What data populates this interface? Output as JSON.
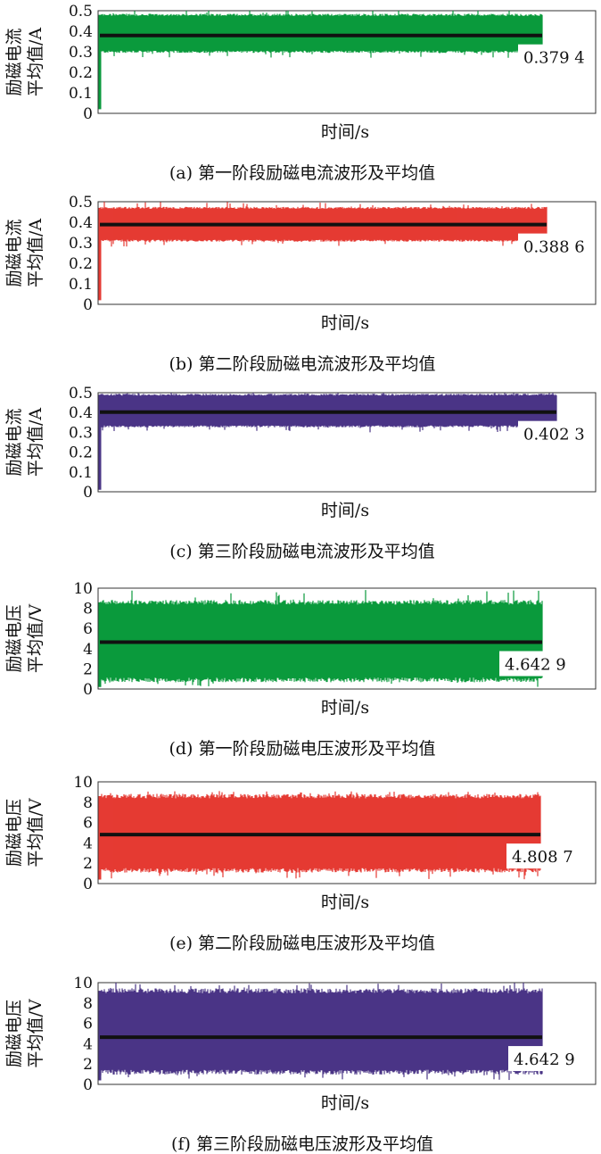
{
  "chart_data": [
    {
      "type": "line",
      "caption": "(a) 第一阶段励磁电流波形及平均值",
      "ylabel": [
        "励磁电流",
        "平均值/A"
      ],
      "xlabel": "时间/s",
      "yticks": [
        "0",
        "0.1",
        "0.2",
        "0.3",
        "0.4",
        "0.5"
      ],
      "ylim": [
        0,
        0.5
      ],
      "series": [
        {
          "name": "",
          "color": "#0a9a3c",
          "shape": "noise_band",
          "band": [
            0.3,
            0.48
          ],
          "extremes": [
            0.27,
            0.51
          ],
          "start_dip": 0.02
        }
      ],
      "mean": 0.3794,
      "annotation": "0.379 4"
    },
    {
      "type": "line",
      "caption": "(b) 第二阶段励磁电流波形及平均值",
      "ylabel": [
        "励磁电流",
        "平均值/A"
      ],
      "xlabel": "时间/s",
      "yticks": [
        "0",
        "0.1",
        "0.2",
        "0.3",
        "0.4",
        "0.5"
      ],
      "ylim": [
        0,
        0.5
      ],
      "series": [
        {
          "name": "",
          "color": "#e53a33",
          "shape": "noise_band",
          "band": [
            0.31,
            0.47
          ],
          "extremes": [
            0.28,
            0.5
          ],
          "start_dip": 0.02
        }
      ],
      "mean": 0.3886,
      "annotation": "0.388 6"
    },
    {
      "type": "line",
      "caption": "(c) 第三阶段励磁电流波形及平均值",
      "ylabel": [
        "励磁电流",
        "平均值/A"
      ],
      "xlabel": "时间/s",
      "yticks": [
        "0",
        "0.1",
        "0.2",
        "0.3",
        "0.4",
        "0.5"
      ],
      "ylim": [
        0,
        0.5
      ],
      "series": [
        {
          "name": "",
          "color": "#4a3586",
          "shape": "noise_band",
          "band": [
            0.33,
            0.49
          ],
          "extremes": [
            0.3,
            0.5
          ],
          "start_dip": 0.01
        }
      ],
      "mean": 0.4023,
      "annotation": "0.402 3"
    },
    {
      "type": "line",
      "caption": "(d) 第一阶段励磁电压波形及平均值",
      "ylabel": [
        "励磁电压",
        "平均值/V"
      ],
      "xlabel": "时间/s",
      "yticks": [
        "0",
        "2",
        "4",
        "6",
        "8",
        "10"
      ],
      "ylim": [
        0,
        10
      ],
      "series": [
        {
          "name": "",
          "color": "#0a9a3c",
          "shape": "noise_band",
          "band": [
            0.9,
            8.6
          ],
          "extremes": [
            0.2,
            9.9
          ],
          "start_dip": 0.2
        }
      ],
      "mean": 4.6429,
      "annotation": "4.642 9"
    },
    {
      "type": "line",
      "caption": "(e) 第二阶段励磁电压波形及平均值",
      "ylabel": [
        "励磁电压",
        "平均值/V"
      ],
      "xlabel": "时间/s",
      "yticks": [
        "0",
        "2",
        "4",
        "6",
        "8",
        "10"
      ],
      "ylim": [
        0,
        10
      ],
      "series": [
        {
          "name": "",
          "color": "#e53a33",
          "shape": "noise_band",
          "band": [
            1.3,
            8.6
          ],
          "extremes": [
            0.4,
            9.1
          ],
          "start_dip": 0.4
        }
      ],
      "mean": 4.8087,
      "annotation": "4.808 7"
    },
    {
      "type": "line",
      "caption": "(f) 第三阶段励磁电压波形及平均值",
      "ylabel": [
        "励磁电压",
        "平均值/V"
      ],
      "xlabel": "时间/s",
      "yticks": [
        "0",
        "2",
        "4",
        "6",
        "8",
        "10"
      ],
      "ylim": [
        0,
        10
      ],
      "series": [
        {
          "name": "",
          "color": "#4a3586",
          "shape": "noise_band",
          "band": [
            1.2,
            9.2
          ],
          "extremes": [
            0.4,
            10.0
          ],
          "start_dip": 0.4
        }
      ],
      "mean": 4.6429,
      "annotation": "4.642 9"
    }
  ]
}
